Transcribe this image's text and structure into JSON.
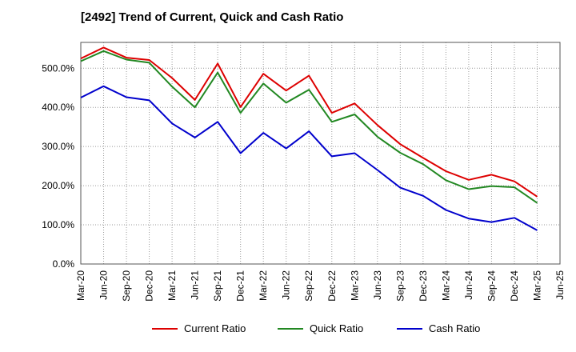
{
  "chart_data": {
    "type": "line",
    "title": "[2492]  Trend of Current, Quick and Cash Ratio",
    "xlabel": "",
    "ylabel": "",
    "ylim": [
      0,
      566
    ],
    "yticks": [
      0,
      100,
      200,
      300,
      400,
      500
    ],
    "ytick_labels": [
      "0.0%",
      "100.0%",
      "200.0%",
      "300.0%",
      "400.0%",
      "500.0%"
    ],
    "categories": [
      "Mar-20",
      "Jun-20",
      "Sep-20",
      "Dec-20",
      "Mar-21",
      "Jun-21",
      "Sep-21",
      "Dec-21",
      "Mar-22",
      "Jun-22",
      "Sep-22",
      "Dec-22",
      "Mar-23",
      "Jun-23",
      "Sep-23",
      "Dec-23",
      "Mar-24",
      "Jun-24",
      "Sep-24",
      "Dec-24",
      "Mar-25",
      "Jun-25"
    ],
    "grid": true,
    "legend_position": "bottom",
    "series": [
      {
        "name": "Current Ratio",
        "color": "#dd0000",
        "values": [
          525,
          553,
          527,
          521,
          475,
          419,
          512,
          401,
          486,
          443,
          481,
          386,
          410,
          355,
          306,
          271,
          237,
          215,
          228,
          211,
          172,
          null
        ]
      },
      {
        "name": "Quick Ratio",
        "color": "#228822",
        "values": [
          518,
          544,
          522,
          514,
          453,
          400,
          489,
          386,
          461,
          412,
          445,
          363,
          382,
          325,
          284,
          255,
          214,
          191,
          199,
          196,
          156,
          null
        ]
      },
      {
        "name": "Cash Ratio",
        "color": "#0000cc",
        "values": [
          425,
          454,
          426,
          418,
          359,
          323,
          363,
          283,
          335,
          295,
          339,
          275,
          283,
          240,
          195,
          174,
          138,
          116,
          107,
          118,
          86,
          null
        ]
      }
    ]
  }
}
